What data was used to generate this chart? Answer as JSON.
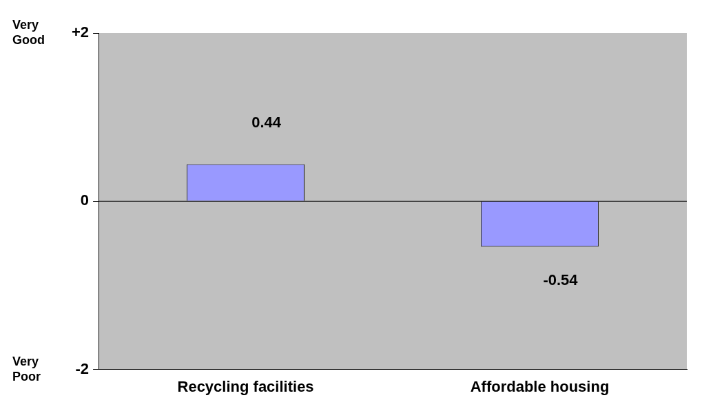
{
  "chart_data": {
    "type": "bar",
    "categories": [
      "Recycling facilities",
      "Affordable housing"
    ],
    "values": [
      0.44,
      -0.54
    ],
    "color": "#9999ff",
    "ylim": [
      -2,
      2
    ],
    "yticks": [
      {
        "value": 2,
        "label": "+2"
      },
      0,
      -2
    ],
    "data_labels": true,
    "grid": false,
    "legend": false,
    "ref_lines": [
      {
        "axis": "y",
        "value": 0,
        "color": "#000000"
      }
    ],
    "annotations": [
      "Very Good",
      "Very Poor"
    ]
  }
}
